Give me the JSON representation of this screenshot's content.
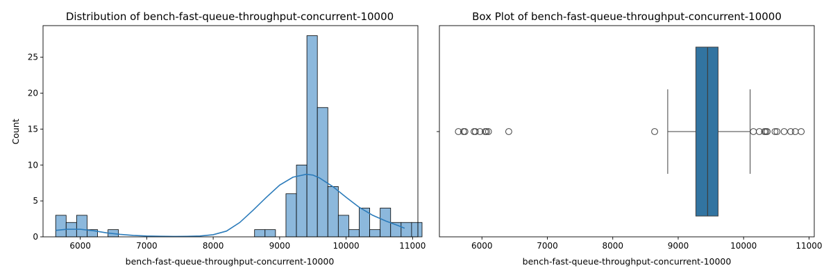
{
  "chart_data": [
    {
      "type": "histogram",
      "title": "Distribution of bench-fast-queue-throughput-concurrent-10000",
      "xlabel": "bench-fast-queue-throughput-concurrent-10000",
      "ylabel": "Count",
      "xlim": [
        5440,
        11080
      ],
      "ylim": [
        0,
        29.4
      ],
      "xticks": [
        6000,
        7000,
        8000,
        9000,
        10000,
        11000
      ],
      "yticks": [
        0,
        5,
        10,
        15,
        20,
        25
      ],
      "bin_start": 5630,
      "bin_width": 157.5,
      "counts": [
        3,
        2,
        3,
        1,
        0,
        1,
        0,
        0,
        0,
        0,
        0,
        0,
        0,
        0,
        0,
        0,
        0,
        0,
        0,
        1,
        1,
        0,
        6,
        10,
        28,
        18,
        7,
        3,
        1,
        4,
        1,
        4,
        2,
        2,
        2
      ],
      "kde": {
        "x": [
          5630,
          5800,
          6000,
          6200,
          6400,
          6600,
          6800,
          7000,
          7200,
          7400,
          7600,
          7800,
          8000,
          8200,
          8400,
          8600,
          8800,
          9000,
          9200,
          9400,
          9500,
          9600,
          9800,
          10000,
          10200,
          10400,
          10600,
          10800,
          10880
        ],
        "y": [
          0.9,
          1.05,
          1.05,
          0.85,
          0.55,
          0.35,
          0.2,
          0.12,
          0.08,
          0.06,
          0.07,
          0.12,
          0.3,
          0.8,
          2.0,
          3.7,
          5.5,
          7.2,
          8.3,
          8.7,
          8.6,
          8.2,
          7.0,
          5.5,
          4.1,
          3.0,
          2.2,
          1.5,
          1.2
        ]
      },
      "bar_color": "#8cb8dc",
      "line_color": "#2b7bba"
    },
    {
      "type": "box",
      "title": "Box Plot of bench-fast-queue-throughput-concurrent-10000",
      "xlabel": "bench-fast-queue-throughput-concurrent-10000",
      "xlim": [
        5350,
        11080
      ],
      "xticks": [
        6000,
        7000,
        8000,
        9000,
        10000,
        11000
      ],
      "q1": 9270,
      "median": 9450,
      "q3": 9610,
      "whisker_low": 8840,
      "whisker_high": 10100,
      "outliers": [
        5640,
        5720,
        5740,
        5880,
        5900,
        5970,
        6050,
        6070,
        6100,
        6410,
        8640,
        10150,
        10240,
        10320,
        10340,
        10360,
        10480,
        10510,
        10620,
        10720,
        10790,
        10880
      ],
      "box_color": "#3274a1"
    }
  ]
}
